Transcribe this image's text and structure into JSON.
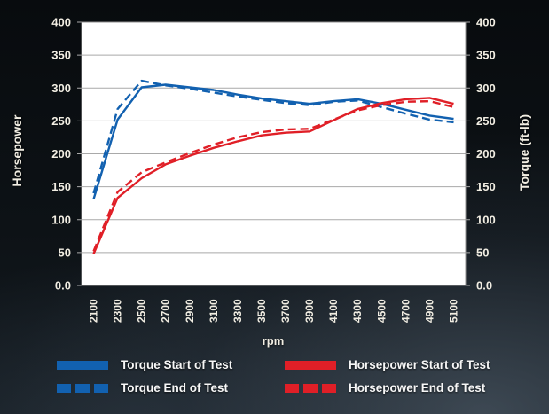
{
  "chart_data": {
    "type": "line",
    "title": "",
    "xlabel": "rpm",
    "ylabel_left": "Horsepower",
    "ylabel_right": "Torque (ft-lb)",
    "x_categories": [
      "2100",
      "2300",
      "2500",
      "2700",
      "2900",
      "3100",
      "3300",
      "3500",
      "3700",
      "3900",
      "4100",
      "4300",
      "4500",
      "4700",
      "4900",
      "5100"
    ],
    "y_ticks": [
      {
        "label": "400",
        "value": 400
      },
      {
        "label": "350",
        "value": 350
      },
      {
        "label": "300",
        "value": 300
      },
      {
        "label": "250",
        "value": 250
      },
      {
        "label": "200",
        "value": 200
      },
      {
        "label": "150",
        "value": 150
      },
      {
        "label": "100",
        "value": 100
      },
      {
        "label": "50",
        "value": 50
      },
      {
        "label": "0.0",
        "value": 0
      }
    ],
    "ylim": [
      0,
      400
    ],
    "grid": "horizontal",
    "legend_position": "bottom-two-columns",
    "series": [
      {
        "name": "Torque Start of Test",
        "axis": "right",
        "style": "solid",
        "color": "#1261b0",
        "values": [
          131,
          252,
          301,
          305,
          301,
          297,
          290,
          284,
          280,
          276,
          280,
          283,
          276,
          267,
          258,
          253
        ]
      },
      {
        "name": "Torque End of Test",
        "axis": "right",
        "style": "dashed",
        "color": "#1261b0",
        "values": [
          140,
          268,
          311,
          304,
          299,
          293,
          287,
          282,
          277,
          274,
          279,
          281,
          271,
          261,
          252,
          248
        ]
      },
      {
        "name": "Horsepower Start of Test",
        "axis": "left",
        "style": "solid",
        "color": "#e01f27",
        "values": [
          48,
          133,
          163,
          184,
          197,
          209,
          219,
          228,
          232,
          234,
          251,
          268,
          277,
          283,
          285,
          276
        ]
      },
      {
        "name": "Horsepower End of Test",
        "axis": "left",
        "style": "dashed",
        "color": "#e01f27",
        "values": [
          52,
          142,
          172,
          187,
          201,
          214,
          225,
          233,
          237,
          238,
          252,
          266,
          274,
          279,
          280,
          271
        ]
      }
    ],
    "colors": {
      "plot_bg": "#ffffff",
      "gridline": "#a9a9a9",
      "plot_border": "#8f8f8f",
      "tick_label": "#f2eee3",
      "legend_text": "#f7f7f7",
      "torque": "#1261b0",
      "horsepower": "#e01f27"
    }
  }
}
